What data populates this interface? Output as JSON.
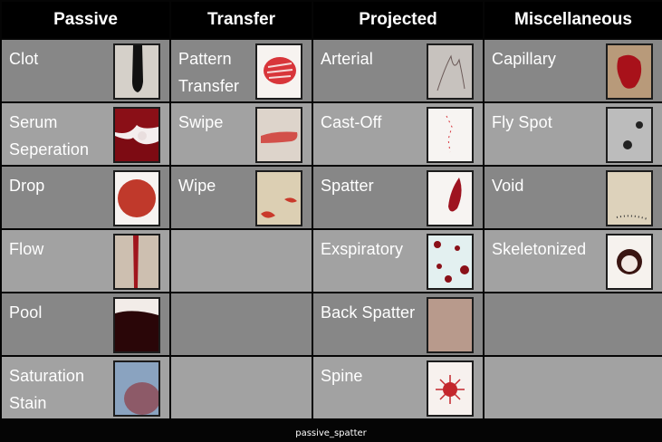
{
  "headers": [
    "Passive",
    "Transfer",
    "Projected",
    "Miscellaneous"
  ],
  "rows": [
    [
      {
        "label": "Clot",
        "image": "clot-image"
      },
      {
        "label": "Pattern\nTransfer",
        "image": "pattern-transfer-image"
      },
      {
        "label": "Arterial",
        "image": "arterial-image"
      },
      {
        "label": "Capillary",
        "image": "capillary-image"
      }
    ],
    [
      {
        "label": "Serum\nSeperation",
        "image": "serum-separation-image"
      },
      {
        "label": "Swipe",
        "image": "swipe-image"
      },
      {
        "label": "Cast-Off",
        "image": "cast-off-image"
      },
      {
        "label": "Fly Spot",
        "image": "fly-spot-image"
      }
    ],
    [
      {
        "label": "Drop",
        "image": "drop-image"
      },
      {
        "label": "Wipe",
        "image": "wipe-image"
      },
      {
        "label": "Spatter",
        "image": "spatter-image"
      },
      {
        "label": "Void",
        "image": "void-image"
      }
    ],
    [
      {
        "label": "Flow",
        "image": "flow-image"
      },
      null,
      {
        "label": "Exspiratory",
        "image": "expiratory-image"
      },
      {
        "label": "Skeletonized",
        "image": "skeletonized-image"
      }
    ],
    [
      {
        "label": "Pool",
        "image": "pool-image"
      },
      null,
      {
        "label": "Back Spatter",
        "image": "back-spatter-image"
      },
      null
    ],
    [
      {
        "label": "Saturation\nStain",
        "image": "saturation-stain-image"
      },
      null,
      {
        "label": "Spine",
        "image": "spine-image"
      },
      null
    ]
  ],
  "caption": "passive_spatter",
  "colors": {
    "header_bg": "#000000",
    "cell_dark": "#878787",
    "cell_light": "#a2a2a2",
    "blood": "#b3121a"
  }
}
